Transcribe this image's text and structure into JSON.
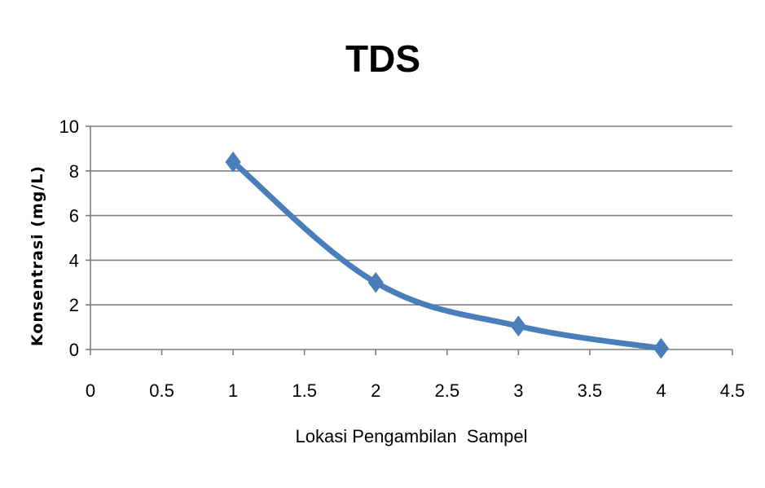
{
  "chart_data": {
    "type": "scatter",
    "title": "TDS",
    "xlabel": "Lokasi Pengambilan  Sampel",
    "ylabel": "Konsentrasi (mg/L)",
    "xlim": [
      0,
      4.5
    ],
    "ylim": [
      0,
      10
    ],
    "x_ticks": [
      "0",
      "0.5",
      "1",
      "1.5",
      "2",
      "2.5",
      "3",
      "3.5",
      "4",
      "4.5"
    ],
    "y_ticks": [
      "0",
      "2",
      "4",
      "6",
      "8",
      "10"
    ],
    "grid": "horizontal",
    "legend": "none",
    "line_style": "smoothed line with diamond markers",
    "color": "#4a7ebb",
    "series": [
      {
        "x": [
          1,
          2,
          3,
          4
        ],
        "y": [
          8.4,
          3.0,
          1.05,
          0.05
        ]
      }
    ]
  }
}
